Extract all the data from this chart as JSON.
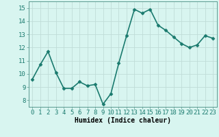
{
  "x": [
    0,
    1,
    2,
    3,
    4,
    5,
    6,
    7,
    8,
    9,
    10,
    11,
    12,
    13,
    14,
    15,
    16,
    17,
    18,
    19,
    20,
    21,
    22,
    23
  ],
  "y": [
    9.6,
    10.7,
    11.7,
    10.1,
    8.9,
    8.9,
    9.4,
    9.1,
    9.2,
    7.7,
    8.5,
    10.8,
    12.9,
    14.9,
    14.6,
    14.9,
    13.7,
    13.3,
    12.8,
    12.3,
    12.0,
    12.2,
    12.9,
    12.7
  ],
  "line_color": "#1a7a6e",
  "marker": "D",
  "marker_size": 2.5,
  "bg_color": "#d8f5f0",
  "grid_color": "#c0dcd8",
  "xlabel": "Humidex (Indice chaleur)",
  "ylim": [
    7.5,
    15.5
  ],
  "xlim": [
    -0.5,
    23.5
  ],
  "yticks": [
    8,
    9,
    10,
    11,
    12,
    13,
    14,
    15
  ],
  "xticks": [
    0,
    1,
    2,
    3,
    4,
    5,
    6,
    7,
    8,
    9,
    10,
    11,
    12,
    13,
    14,
    15,
    16,
    17,
    18,
    19,
    20,
    21,
    22,
    23
  ],
  "xlabel_fontsize": 7,
  "tick_fontsize": 6.5,
  "line_width": 1.2
}
